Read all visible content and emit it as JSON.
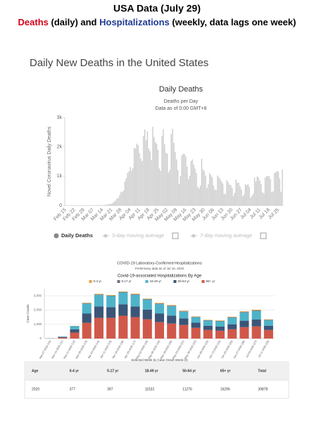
{
  "header": {
    "title": "USA Data (July 29)",
    "subtitle_parts": [
      {
        "text": "Deaths",
        "color": "#d0021b"
      },
      {
        "text": " (daily) and ",
        "color": "#000000"
      },
      {
        "text": "Hospitalizations",
        "color": "#1f3a93"
      },
      {
        "text": " (weekly, data lags one week)",
        "color": "#000000"
      }
    ]
  },
  "section_heading": "Daily New Deaths in the United States",
  "chart_data": [
    {
      "type": "bar",
      "title": "Daily Deaths",
      "subtitle": "Deaths per Day",
      "note": "Data as of 0:00 GMT+8",
      "y_label": "Novel Coronavirus Daily Deaths",
      "categories": [
        "Feb 15",
        null,
        null,
        null,
        null,
        null,
        null,
        "Feb 22",
        null,
        null,
        null,
        null,
        null,
        null,
        "Feb 29",
        null,
        null,
        null,
        null,
        null,
        null,
        "Mar 07",
        null,
        null,
        null,
        null,
        null,
        null,
        "Mar 14",
        null,
        null,
        null,
        null,
        null,
        null,
        "Mar 21",
        null,
        null,
        null,
        null,
        null,
        null,
        "Mar 28",
        null,
        null,
        null,
        null,
        null,
        null,
        "Apr 04",
        null,
        null,
        null,
        null,
        null,
        null,
        "Apr 11",
        null,
        null,
        null,
        null,
        null,
        null,
        "Apr 18",
        null,
        null,
        null,
        null,
        null,
        null,
        "Apr 25",
        null,
        null,
        null,
        null,
        null,
        null,
        "May 02",
        null,
        null,
        null,
        null,
        null,
        null,
        "May 09",
        null,
        null,
        null,
        null,
        null,
        null,
        "May 16",
        null,
        null,
        null,
        null,
        null,
        null,
        "May 23",
        null,
        null,
        null,
        null,
        null,
        null,
        "May 30",
        null,
        null,
        null,
        null,
        null,
        null,
        "Jun 06",
        null,
        null,
        null,
        null,
        null,
        null,
        "Jun 13",
        null,
        null,
        null,
        null,
        null,
        null,
        "Jun 20",
        null,
        null,
        null,
        null,
        null,
        null,
        "Jun 27",
        null,
        null,
        null,
        null,
        null,
        null,
        "Jul 04",
        null,
        null,
        null,
        null,
        null,
        null,
        "Jul 11",
        null,
        null,
        null,
        null,
        null,
        null,
        "Jul 18",
        null,
        null,
        null,
        null,
        null,
        null,
        "Jul 25",
        null,
        null,
        null
      ],
      "series": [
        {
          "name": "Daily Deaths",
          "color": "#c8c8c8",
          "legend_color": "#888888",
          "values": [
            0,
            0,
            0,
            0,
            0,
            0,
            0,
            0,
            0,
            0,
            0,
            0,
            0,
            0,
            1,
            1,
            2,
            1,
            2,
            1,
            3,
            2,
            4,
            5,
            7,
            7,
            12,
            10,
            11,
            19,
            17,
            27,
            37,
            44,
            56,
            62,
            93,
            136,
            169,
            238,
            265,
            362,
            467,
            462,
            514,
            817,
            936,
            1115,
            1164,
            1313,
            1191,
            1274,
            1966,
            1943,
            2107,
            2059,
            1794,
            1601,
            1516,
            2375,
            2595,
            2221,
            2531,
            1949,
            1850,
            1545,
            2686,
            2341,
            2163,
            2102,
            1898,
            1263,
            1188,
            2371,
            2608,
            2085,
            1796,
            1770,
            1126,
            1213,
            2438,
            2616,
            2133,
            1831,
            1575,
            1209,
            740,
            1012,
            1712,
            1765,
            1759,
            1672,
            1327,
            904,
            1020,
            1520,
            1570,
            1394,
            1260,
            1112,
            640,
            575,
            684,
            1590,
            1233,
            1180,
            1021,
            600,
            730,
            1100,
            1040,
            960,
            680,
            540,
            530,
            1020,
            970,
            900,
            820,
            750,
            390,
            400,
            860,
            800,
            710,
            700,
            600,
            330,
            430,
            880,
            770,
            780,
            660,
            550,
            310,
            380,
            730,
            700,
            730,
            640,
            270,
            330,
            400,
            950,
            820,
            990,
            960,
            850,
            730,
            450,
            420,
            950,
            1000,
            1000,
            1010,
            900,
            470,
            480,
            1100,
            1140,
            1180,
            1140,
            920,
            470,
            1230
          ]
        }
      ],
      "inactive_legend": [
        "3-day moving average",
        "7-day moving average"
      ],
      "ylim": [
        0,
        3000
      ],
      "yticks": [
        0,
        {
          "value": 1000,
          "label": "1k"
        },
        {
          "value": 2000,
          "label": "2k"
        },
        {
          "value": 3000,
          "label": "3k"
        }
      ],
      "grid": false
    },
    {
      "type": "stacked_bar",
      "title": "COVID-19 Laboratory-Confirmed Hospitalizations",
      "subtitle": "Preliminary data as of Jul 18, 2020",
      "chart_title": "Covid-19-associated Hospitalizations By Age",
      "y_label": "Case Counts",
      "x_label": "Selected Week by Case Onset Week (4)",
      "categories": [
        "Mar-07-2020 (10)",
        "Mar-14-2020 (11)",
        "Mar-21-2020 (12)",
        "Mar-28-2020 (13)",
        "Apr-04-2020 (14)",
        "Apr-11-2020 (15)",
        "Apr-18-2020 (16)",
        "Apr-25-2020 (17)",
        "May-02-2020 (18)",
        "May-09-2020 (19)",
        "May-16-2020 (20)",
        "May-23-2020 (21)",
        "May-30-2020 (22)",
        "Jun-06-2020 (23)",
        "Jun-13-2020 (24)",
        "Jun-20-2020 (25)",
        "Jun-27-2020 (26)",
        "Jul-04-2020 (27)",
        "Jul-11-2020 (28)"
      ],
      "series": [
        {
          "name": "0-4 yr",
          "color": "#e8a33d",
          "values": [
            0,
            2,
            10,
            30,
            40,
            35,
            35,
            40,
            35,
            40,
            40,
            35,
            30,
            25,
            30,
            35,
            40,
            45,
            30
          ]
        },
        {
          "name": "5-17 yr",
          "color": "#6b7280",
          "values": [
            0,
            3,
            10,
            30,
            40,
            35,
            35,
            40,
            35,
            45,
            45,
            35,
            30,
            25,
            30,
            35,
            45,
            50,
            30
          ]
        },
        {
          "name": "18-49 yr",
          "color": "#4eb3c9",
          "values": [
            5,
            35,
            220,
            700,
            800,
            780,
            830,
            810,
            700,
            660,
            650,
            470,
            380,
            360,
            370,
            460,
            570,
            600,
            380
          ]
        },
        {
          "name": "50-64 yr",
          "color": "#3b5578",
          "values": [
            5,
            40,
            230,
            650,
            800,
            750,
            800,
            750,
            680,
            600,
            560,
            460,
            360,
            300,
            290,
            350,
            450,
            480,
            300
          ]
        },
        {
          "name": "65+ yr",
          "color": "#d0584a",
          "values": [
            10,
            70,
            420,
            1100,
            1450,
            1450,
            1600,
            1500,
            1350,
            1150,
            1050,
            950,
            750,
            600,
            550,
            650,
            800,
            850,
            600
          ]
        }
      ],
      "ylim": [
        0,
        3500
      ],
      "yticks": [
        0,
        {
          "value": 1000,
          "label": "1,000"
        },
        {
          "value": 2000,
          "label": "2,000"
        },
        {
          "value": 3000,
          "label": "3,000"
        }
      ],
      "grid": true
    }
  ],
  "table": {
    "header": [
      "Age",
      "0-4 yr",
      "5-17 yr",
      "18-49 yr",
      "50-64 yr",
      "65+ yr",
      "Total"
    ],
    "rows": [
      [
        "2020",
        "377",
        "397",
        "11532",
        "11276",
        "16296",
        "39878"
      ]
    ]
  }
}
